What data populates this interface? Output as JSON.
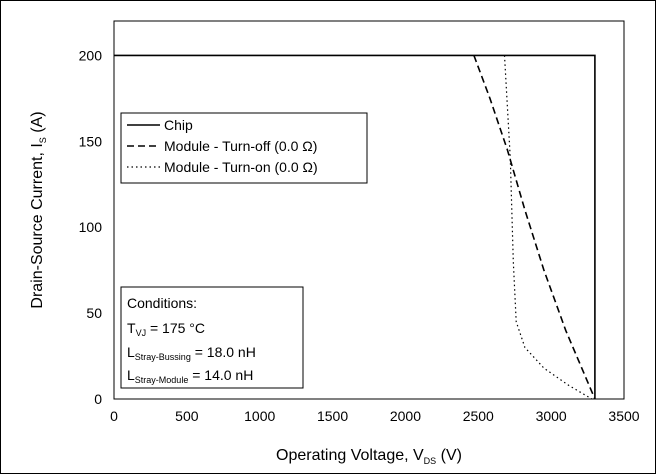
{
  "chart_data": {
    "type": "line",
    "xlabel": {
      "main": "Operating Voltage, V",
      "sub": "DS",
      "tail": " (V)"
    },
    "ylabel": {
      "main": "Drain-Source Current, I",
      "sub": "S",
      "tail": " (A)"
    },
    "xlim": [
      0,
      3500
    ],
    "ylim": [
      0,
      220
    ],
    "x_ticks": [
      0,
      500,
      1000,
      1500,
      2000,
      2500,
      3000,
      3500
    ],
    "y_ticks": [
      0,
      50,
      100,
      150,
      200
    ],
    "grid": "none",
    "legend_position": "upper-left",
    "series": [
      {
        "name": "Chip",
        "style": "solid",
        "points": [
          [
            0,
            200
          ],
          [
            3300,
            200
          ],
          [
            3300,
            0
          ]
        ]
      },
      {
        "name": "Module - Turn-off (0.0 Ω)",
        "style": "dashed",
        "points": [
          [
            2470,
            200
          ],
          [
            2580,
            175
          ],
          [
            2700,
            145
          ],
          [
            2820,
            110
          ],
          [
            2950,
            75
          ],
          [
            3100,
            40
          ],
          [
            3300,
            0
          ]
        ]
      },
      {
        "name": "Module - Turn-on (0.0 Ω)",
        "style": "dotted",
        "points": [
          [
            2680,
            200
          ],
          [
            2700,
            170
          ],
          [
            2720,
            140
          ],
          [
            2730,
            110
          ],
          [
            2740,
            80
          ],
          [
            2760,
            45
          ],
          [
            2820,
            30
          ],
          [
            2950,
            18
          ],
          [
            3120,
            8
          ],
          [
            3280,
            0
          ]
        ]
      }
    ],
    "conditions": {
      "title": "Conditions:",
      "lines": [
        {
          "main": "T",
          "sub": "VJ",
          "tail": " = 175 °C"
        },
        {
          "main": "L",
          "sub": "Stray-Bussing",
          "tail": " = 18.0 nH"
        },
        {
          "main": "L",
          "sub": "Stray-Module",
          "tail": " = 14.0 nH"
        }
      ]
    }
  }
}
